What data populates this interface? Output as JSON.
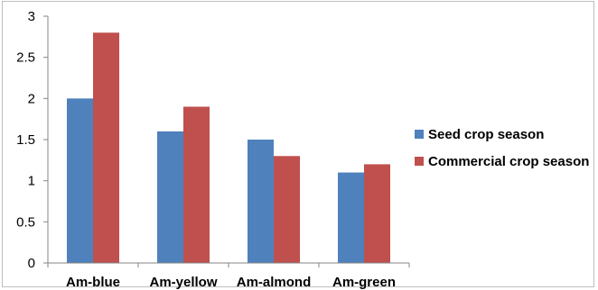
{
  "chart_data": {
    "type": "bar",
    "title": "",
    "xlabel": "",
    "ylabel": "",
    "categories": [
      "Am-blue",
      "Am-yellow",
      "Am-almond",
      "Am-green"
    ],
    "series": [
      {
        "name": "Seed crop season",
        "values": [
          2.0,
          1.6,
          1.5,
          1.1
        ],
        "color": "#4f81bd"
      },
      {
        "name": "Commercial crop season",
        "values": [
          2.8,
          1.9,
          1.3,
          1.2
        ],
        "color": "#c0504d"
      }
    ],
    "ylim": [
      0,
      3
    ],
    "yticks": [
      "0",
      "0.5",
      "1",
      "1.5",
      "2",
      "2.5",
      "3"
    ],
    "grid": false,
    "legend_position": "right"
  }
}
